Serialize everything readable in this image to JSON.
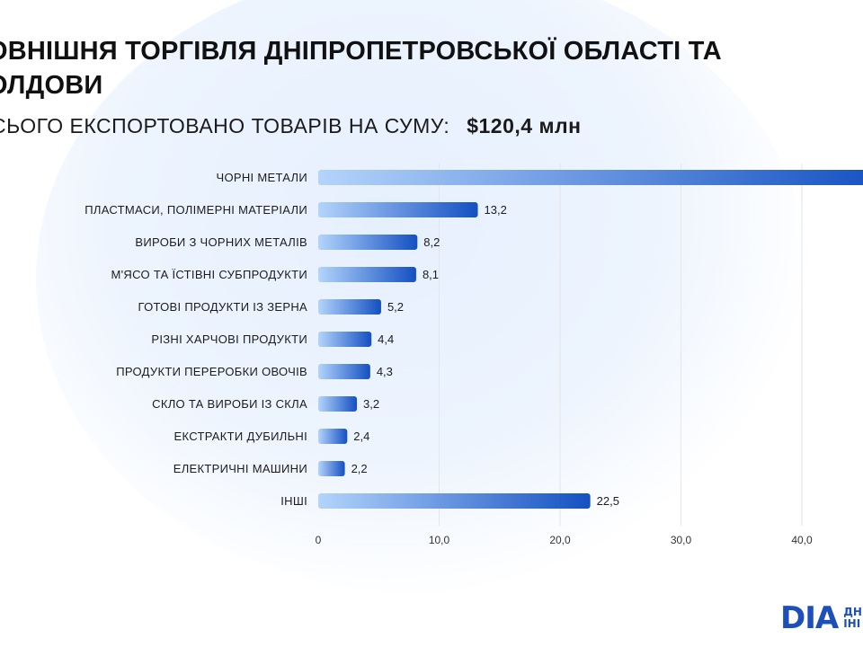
{
  "header": {
    "title_line1": "ОВНІШНЯ ТОРГІВЛЯ ДНІПРОПЕТРОВСЬКОЇ ОБЛАСТІ ТА",
    "title_line2": "ОЛДОВИ",
    "subtitle": "СЬОГО ЕКСПОРТОВАНО ТОВАРІВ НА СУМУ:",
    "total": "$120,4 млн"
  },
  "logo": {
    "mark": "DIA",
    "text_line1": "ДН",
    "text_line2": "ІНІ"
  },
  "colors": {
    "bar_start": "#b3d4fb",
    "bar_end": "#1450c2",
    "grid": "#e3e6ea"
  },
  "chart_data": {
    "type": "bar",
    "orientation": "horizontal",
    "categories": [
      "ЧОРНІ МЕТАЛИ",
      "ПЛАСТМАСИ, ПОЛІМЕРНІ МАТЕРІАЛИ",
      "ВИРОБИ З ЧОРНИХ МЕТАЛІВ",
      "М'ЯСО ТА ЇСТІВНІ СУБПРОДУКТИ",
      "ГОТОВІ ПРОДУКТИ ІЗ ЗЕРНА",
      "РІЗНІ ХАРЧОВІ ПРОДУКТИ",
      "ПРОДУКТИ ПЕРЕРОБКИ ОВОЧІВ",
      "СКЛО ТА ВИРОБИ ІЗ СКЛА",
      "ЕКСТРАКТИ ДУБИЛЬНІ",
      "ЕЛЕКТРИЧНІ МАШИНИ",
      "ІНШІ"
    ],
    "values": [
      47.0,
      13.2,
      8.2,
      8.1,
      5.2,
      4.4,
      4.3,
      3.2,
      2.4,
      2.2,
      22.5
    ],
    "value_labels": [
      "",
      "13,2",
      "8,2",
      "8,1",
      "5,2",
      "4,4",
      "4,3",
      "3,2",
      "2,4",
      "2,2",
      "22,5"
    ],
    "xlim": [
      0,
      50
    ],
    "ticks": [
      0,
      10,
      20,
      30,
      40
    ],
    "tick_labels": [
      "0",
      "10,0",
      "20,0",
      "30,0",
      "40,0"
    ],
    "grid": true
  }
}
